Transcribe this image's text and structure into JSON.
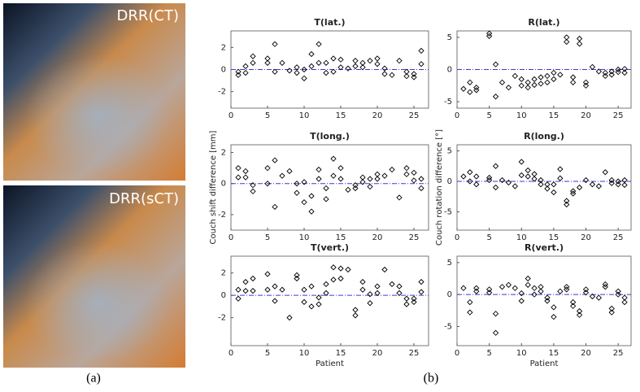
{
  "images": [
    {
      "label": "DRR(CT)"
    },
    {
      "label": "DRR(sCT)"
    }
  ],
  "captions": [
    "(a)",
    "(b)"
  ],
  "chart_data": [
    {
      "type": "scatter",
      "title": "T(lat.)",
      "marker_color": "#000000",
      "reference_line": 0,
      "reference_color": "#3a3ad6",
      "x": [
        1,
        1,
        2,
        2,
        3,
        3,
        5,
        5,
        6,
        6,
        7,
        8,
        9,
        9,
        10,
        10,
        11,
        11,
        12,
        12,
        13,
        13,
        14,
        14,
        15,
        15,
        16,
        17,
        17,
        18,
        18,
        19,
        20,
        20,
        21,
        21,
        22,
        23,
        24,
        24,
        25,
        25,
        26,
        26
      ],
      "values": [
        -0.5,
        -0.2,
        -0.3,
        0.3,
        0.6,
        1.2,
        0.6,
        1.0,
        -0.2,
        2.3,
        0.6,
        -0.1,
        0.2,
        -0.3,
        -0.8,
        0,
        0.3,
        1.4,
        0.6,
        2.3,
        -0.3,
        0.6,
        -0.2,
        1.0,
        0.2,
        0.9,
        0.1,
        0.3,
        0.8,
        0.6,
        0.2,
        0.8,
        0.5,
        1.0,
        0.1,
        -0.4,
        -0.5,
        0.8,
        -0.6,
        -0.2,
        -0.7,
        -0.4,
        0.5,
        1.7
      ],
      "xlim": [
        0,
        27
      ],
      "xticks": [
        0,
        5,
        10,
        15,
        20,
        25
      ],
      "ylim": [
        -3.5,
        3.5
      ],
      "yticks": [
        -2,
        0,
        2
      ]
    },
    {
      "type": "scatter",
      "title": "T(long.)",
      "ylabel": "Couch shift difference [mm]",
      "marker_color": "#000000",
      "reference_line": 0,
      "reference_color": "#3a3ad6",
      "x": [
        1,
        1,
        2,
        2,
        3,
        3,
        5,
        5,
        6,
        6,
        7,
        8,
        9,
        9,
        10,
        10,
        11,
        11,
        12,
        12,
        13,
        13,
        14,
        14,
        15,
        15,
        16,
        17,
        17,
        18,
        18,
        19,
        19,
        20,
        20,
        21,
        22,
        23,
        24,
        24,
        25,
        25,
        26,
        26
      ],
      "values": [
        0.4,
        1.0,
        0.4,
        0.8,
        -0.5,
        -0.1,
        0,
        1.0,
        -1.5,
        1.5,
        0.5,
        0.8,
        0,
        -0.6,
        -1.2,
        0.1,
        -1.8,
        -0.8,
        0.3,
        0.9,
        -0.3,
        -1.0,
        0.5,
        1.6,
        0.3,
        1.0,
        -0.4,
        -0.3,
        -0.1,
        0.1,
        0.4,
        0.3,
        -0.2,
        0.3,
        0.6,
        0.5,
        0.9,
        -0.9,
        0.6,
        1.0,
        0.2,
        0.7,
        -0.3,
        0.3
      ],
      "xlim": [
        0,
        27
      ],
      "xticks": [
        0,
        5,
        10,
        15,
        20,
        25
      ],
      "ylim": [
        -3,
        2.5
      ],
      "yticks": [
        -2,
        0,
        2
      ]
    },
    {
      "type": "scatter",
      "title": "T(vert.)",
      "xlabel": "Patient",
      "marker_color": "#000000",
      "reference_line": 0,
      "reference_color": "#3a3ad6",
      "x": [
        1,
        1,
        2,
        2,
        3,
        3,
        5,
        5,
        6,
        6,
        7,
        8,
        9,
        9,
        10,
        10,
        11,
        11,
        12,
        12,
        13,
        13,
        14,
        14,
        15,
        15,
        16,
        17,
        17,
        18,
        18,
        19,
        19,
        20,
        20,
        21,
        22,
        23,
        23,
        24,
        24,
        25,
        25,
        26,
        26
      ],
      "values": [
        -0.3,
        0.5,
        0.4,
        1.2,
        0.4,
        1.5,
        0.5,
        1.9,
        -0.5,
        0.8,
        0.5,
        -2.0,
        1.5,
        1.8,
        -0.6,
        0.5,
        -1.0,
        0.8,
        -0.8,
        -0.2,
        0.2,
        1.0,
        1.4,
        2.5,
        1.5,
        2.4,
        2.3,
        -1.8,
        -1.3,
        0.5,
        1.2,
        -0.7,
        0.1,
        0.2,
        0.8,
        2.3,
        1.0,
        0.2,
        0.8,
        -0.8,
        -0.3,
        -0.6,
        -0.3,
        0.3,
        1.2
      ],
      "xlim": [
        0,
        27
      ],
      "xticks": [
        0,
        5,
        10,
        15,
        20,
        25
      ],
      "ylim": [
        -4.5,
        3.5
      ],
      "yticks": [
        -2,
        0,
        2
      ]
    },
    {
      "type": "scatter",
      "title": "R(lat.)",
      "marker_color": "#000000",
      "reference_line": 0,
      "reference_color": "#3a3ad6",
      "x": [
        1,
        2,
        2,
        3,
        3,
        5,
        5,
        6,
        6,
        7,
        8,
        9,
        10,
        10,
        11,
        11,
        12,
        12,
        13,
        13,
        14,
        14,
        15,
        15,
        16,
        17,
        17,
        18,
        18,
        19,
        19,
        20,
        20,
        21,
        22,
        23,
        23,
        24,
        24,
        25,
        25,
        26,
        26
      ],
      "values": [
        -3.0,
        -3.5,
        -2,
        -3.2,
        -2.8,
        5.2,
        5.6,
        -4.2,
        0.8,
        -2.0,
        -2.8,
        -1.0,
        -2.5,
        -1.5,
        -2.8,
        -2.0,
        -2.4,
        -1.5,
        -2.2,
        -1.2,
        -2.0,
        -1.0,
        -1.5,
        -0.5,
        -0.8,
        4.3,
        5.0,
        -2.0,
        -1.2,
        4.0,
        4.8,
        -2.5,
        -2.0,
        0.4,
        -0.3,
        -1.0,
        -0.5,
        -0.8,
        -0.3,
        -0.4,
        0,
        -0.5,
        0.1
      ],
      "xlim": [
        0,
        27
      ],
      "xticks": [
        0,
        5,
        10,
        15,
        20,
        25
      ],
      "ylim": [
        -6,
        6
      ],
      "yticks": [
        -5,
        0,
        5
      ]
    },
    {
      "type": "scatter",
      "title": "R(long.)",
      "ylabel": "Couch rotation difference [°]",
      "marker_color": "#000000",
      "reference_line": 0,
      "reference_color": "#3a3ad6",
      "x": [
        1,
        2,
        2,
        3,
        3,
        5,
        5,
        6,
        6,
        7,
        8,
        9,
        10,
        10,
        11,
        11,
        12,
        12,
        13,
        13,
        14,
        14,
        15,
        15,
        16,
        16,
        17,
        17,
        18,
        18,
        19,
        20,
        21,
        22,
        23,
        24,
        24,
        25,
        25,
        26,
        26
      ],
      "values": [
        0.8,
        0,
        1.5,
        -0.5,
        0.8,
        0.2,
        0.6,
        -1.0,
        2.5,
        0.2,
        -0.2,
        -0.8,
        1.0,
        3.2,
        0.8,
        1.8,
        0.4,
        1.2,
        -0.5,
        0.2,
        -0.5,
        -1.2,
        -1.8,
        -0.5,
        0.5,
        2.0,
        -3.8,
        -3.2,
        -2.0,
        -1.6,
        -1.0,
        0.2,
        -0.5,
        -0.8,
        1.5,
        0.2,
        -0.3,
        -0.5,
        0,
        -0.6,
        0.2
      ],
      "xlim": [
        0,
        27
      ],
      "xticks": [
        0,
        5,
        10,
        15,
        20,
        25
      ],
      "ylim": [
        -8,
        6
      ],
      "yticks": [
        -5,
        0,
        5
      ]
    },
    {
      "type": "scatter",
      "title": "R(vert.)",
      "xlabel": "Patient",
      "marker_color": "#000000",
      "reference_line": 0,
      "reference_color": "#3a3ad6",
      "x": [
        1,
        2,
        2,
        3,
        3,
        5,
        5,
        6,
        6,
        7,
        8,
        9,
        10,
        10,
        11,
        11,
        12,
        12,
        13,
        13,
        14,
        14,
        15,
        15,
        16,
        17,
        17,
        18,
        18,
        19,
        19,
        20,
        20,
        21,
        22,
        23,
        23,
        24,
        24,
        25,
        25,
        26,
        26
      ],
      "values": [
        1.0,
        -1.2,
        -2.8,
        0.5,
        1.0,
        0.3,
        0.8,
        -6.0,
        -3.0,
        1.2,
        1.5,
        1.0,
        -1.0,
        0.2,
        1.5,
        2.5,
        0,
        1.0,
        0.5,
        1.2,
        -0.5,
        -1.0,
        -3.5,
        -2.0,
        0.5,
        0.8,
        1.2,
        -1.8,
        -1.2,
        -3.2,
        -2.6,
        0.3,
        0.8,
        -0.3,
        -0.5,
        1.2,
        1.6,
        -2.8,
        -2.2,
        0,
        0.5,
        -1.2,
        -0.5
      ],
      "xlim": [
        0,
        27
      ],
      "xticks": [
        0,
        5,
        10,
        15,
        20,
        25
      ],
      "ylim": [
        -8,
        6
      ],
      "yticks": [
        -5,
        0,
        5
      ]
    }
  ]
}
